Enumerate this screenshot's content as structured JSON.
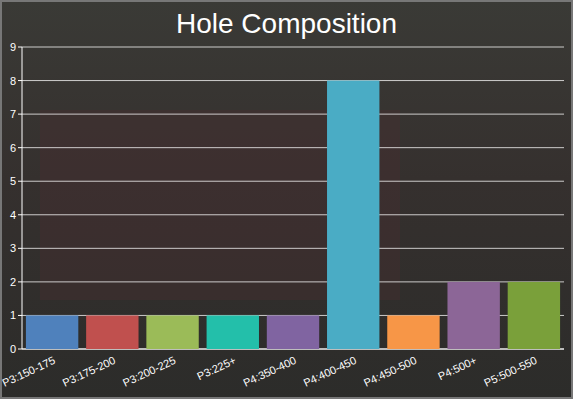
{
  "chart_data": {
    "type": "bar",
    "title": "Hole Composition",
    "categories": [
      "P3:150-175",
      "P3:175-200",
      "P3:200-225",
      "P3:225+",
      "P4:350-400",
      "P4:400-450",
      "P4:450-500",
      "P4:500+",
      "P5:500-550"
    ],
    "values": [
      1,
      1,
      1,
      1,
      1,
      8,
      1,
      2,
      2
    ],
    "colors": [
      "#4f81bc",
      "#c0504e",
      "#9bbb58",
      "#23bfaa",
      "#8064a1",
      "#4aacc5",
      "#f79647",
      "#8c6697",
      "#7aa03a"
    ],
    "ylim": [
      0,
      9
    ],
    "yticks": [
      0,
      1,
      2,
      3,
      4,
      5,
      6,
      7,
      8,
      9
    ],
    "grid": true
  }
}
